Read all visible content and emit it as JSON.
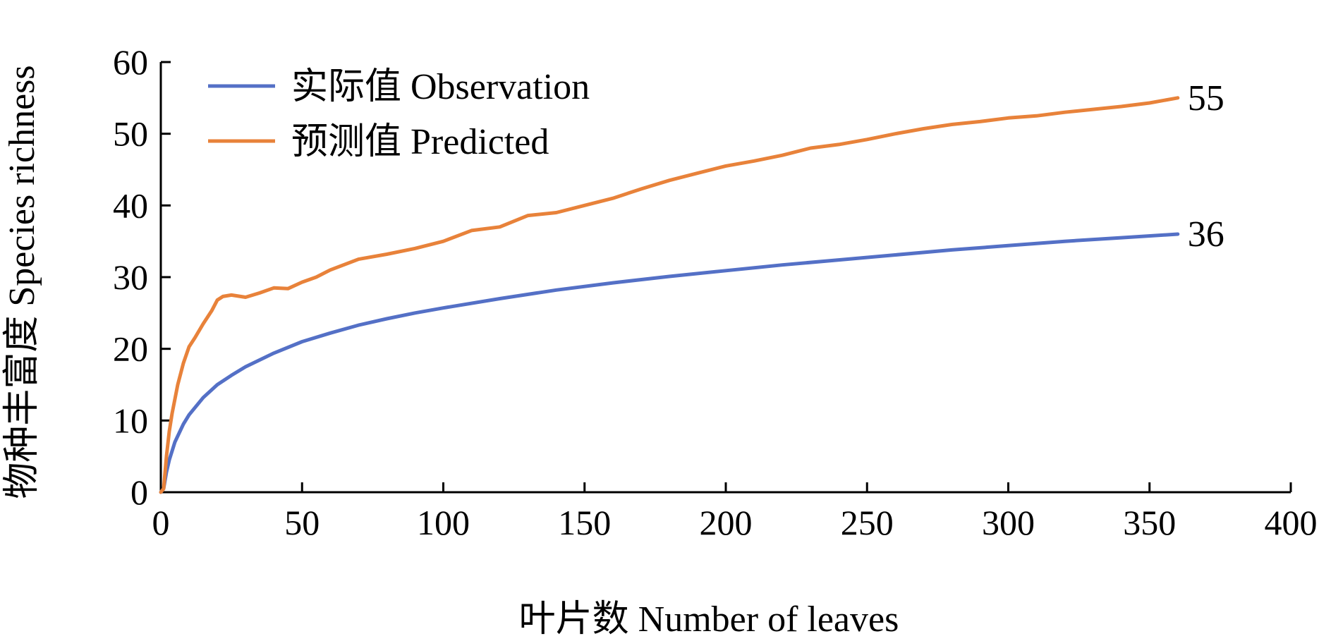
{
  "chart_data": {
    "type": "line",
    "xlabel": "叶片数 Number of leaves",
    "ylabel": "物种丰富度 Species richness",
    "xlim": [
      0,
      400
    ],
    "ylim": [
      0,
      60
    ],
    "x_ticks": [
      0,
      50,
      100,
      150,
      200,
      250,
      300,
      350,
      400
    ],
    "y_ticks": [
      0,
      10,
      20,
      30,
      40,
      50,
      60
    ],
    "grid": false,
    "legend_position": "top-left",
    "series": [
      {
        "name": "实际值 Observation",
        "color": "#5470c6",
        "x": [
          1,
          2,
          3,
          5,
          8,
          10,
          15,
          20,
          25,
          30,
          40,
          50,
          60,
          70,
          80,
          90,
          100,
          120,
          140,
          160,
          180,
          200,
          220,
          240,
          260,
          280,
          300,
          320,
          340,
          360
        ],
        "y": [
          0.5,
          2.8,
          4.5,
          7,
          9.5,
          10.8,
          13.2,
          15,
          16.3,
          17.5,
          19.4,
          21,
          22.2,
          23.3,
          24.2,
          25,
          25.7,
          27,
          28.2,
          29.2,
          30.1,
          30.9,
          31.7,
          32.4,
          33.1,
          33.8,
          34.4,
          35,
          35.5,
          36
        ],
        "end_label": "36"
      },
      {
        "name": "预测值 Predicted",
        "color": "#e8823a",
        "x": [
          1,
          2,
          3,
          4,
          6,
          8,
          10,
          12,
          15,
          18,
          20,
          22,
          25,
          30,
          35,
          40,
          45,
          50,
          55,
          60,
          70,
          80,
          90,
          100,
          110,
          120,
          130,
          140,
          150,
          160,
          170,
          180,
          190,
          200,
          210,
          220,
          230,
          240,
          250,
          260,
          270,
          280,
          290,
          300,
          310,
          320,
          330,
          340,
          350,
          360
        ],
        "y": [
          0.5,
          5,
          8.5,
          11,
          15,
          18,
          20.3,
          21.5,
          23.5,
          25.3,
          26.8,
          27.3,
          27.5,
          27.2,
          27.8,
          28.5,
          28.4,
          29.3,
          30,
          31,
          32.5,
          33.2,
          34,
          35,
          36.5,
          37,
          38.6,
          39,
          40,
          41,
          42.3,
          43.5,
          44.5,
          45.5,
          46.2,
          47,
          48,
          48.5,
          49.2,
          50,
          50.7,
          51.3,
          51.7,
          52.2,
          52.5,
          53,
          53.4,
          53.8,
          54.3,
          55
        ],
        "end_label": "55"
      }
    ]
  }
}
